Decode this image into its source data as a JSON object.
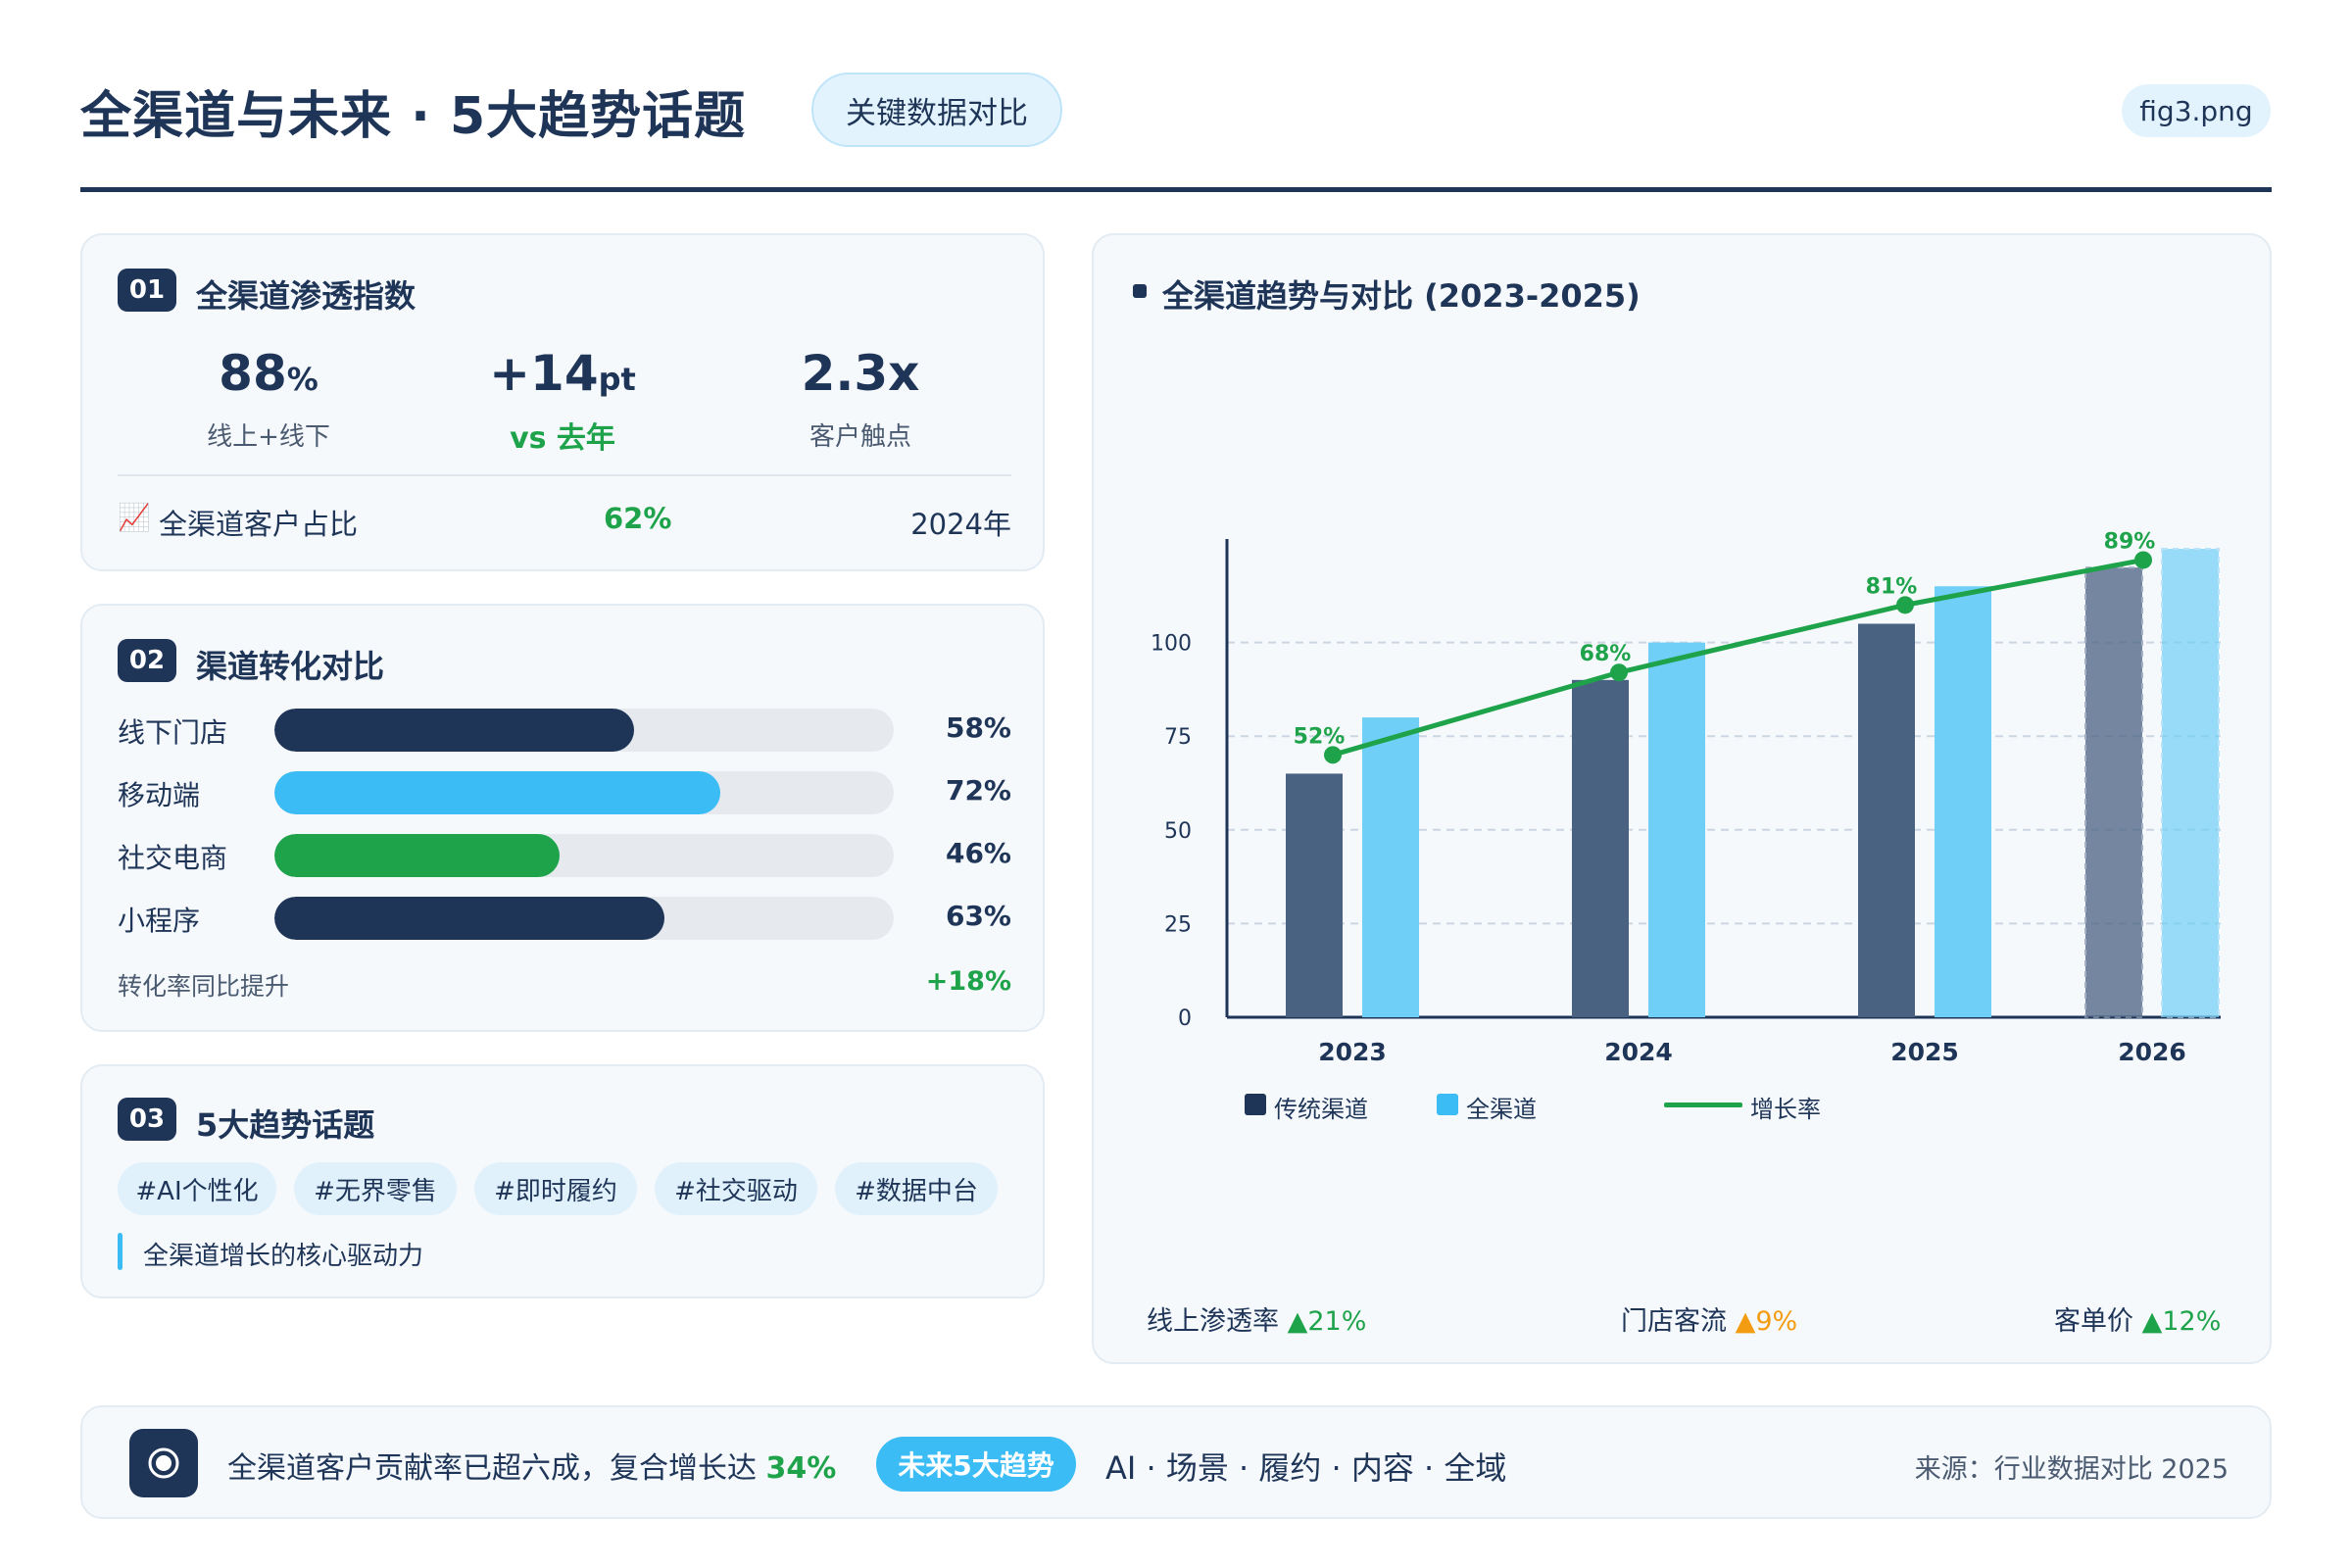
{
  "header": {
    "title": "全渠道与未来 · 5大趋势话题",
    "key_pill": "关键数据对比",
    "file_label": "fig3.png"
  },
  "card1": {
    "badge": "01",
    "title": "全渠道渗透指数",
    "stats": [
      {
        "value": "88",
        "unit": "%",
        "label": "线上+线下"
      },
      {
        "value": "+14",
        "unit": "pt",
        "label": "vs 去年"
      },
      {
        "value": "2.3x",
        "unit": "",
        "label": "客户触点"
      }
    ],
    "row": {
      "icon": "📈",
      "label": "全渠道客户占比",
      "value": "62%",
      "year": "2024年"
    }
  },
  "card2": {
    "badge": "02",
    "title": "渠道转化对比",
    "bars": [
      {
        "label": "线下门店",
        "value": 58,
        "pct": "58%",
        "color": "#1e3558"
      },
      {
        "label": "移动端",
        "value": 72,
        "pct": "72%",
        "color": "#3bbcf5"
      },
      {
        "label": "社交电商",
        "value": 46,
        "pct": "46%",
        "color": "#1ea34b"
      },
      {
        "label": "小程序",
        "value": 63,
        "pct": "63%",
        "color": "#1e3558"
      }
    ],
    "footer_label": "转化率同比提升",
    "footer_value": "+18%"
  },
  "card3": {
    "badge": "03",
    "title": "5大趋势话题",
    "tags": [
      "#AI个性化",
      "#无界零售",
      "#即时履约",
      "#社交驱动",
      "#数据中台"
    ],
    "note": "全渠道增长的核心驱动力"
  },
  "chart_card": {
    "title": "全渠道趋势与对比 (2023-2025)",
    "legend": [
      "传统渠道",
      "全渠道",
      "增长率"
    ],
    "stats": [
      {
        "label": "线上渗透率",
        "arrow": "▲",
        "value": "21%",
        "color": "#1ea34b"
      },
      {
        "label": "门店客流",
        "arrow": "▲",
        "value": "9%",
        "color": "#f39c12"
      },
      {
        "label": "客单价",
        "arrow": "▲",
        "value": "12%",
        "color": "#1ea34b"
      }
    ]
  },
  "chart_data": {
    "type": "bar",
    "categories": [
      "2023",
      "2024",
      "2025",
      "2026"
    ],
    "ylim": [
      0,
      125
    ],
    "yticks": [
      0,
      25,
      50,
      75,
      100
    ],
    "grid": true,
    "legend_position": "bottom-left",
    "series": [
      {
        "name": "传统渠道",
        "type": "bar",
        "values": [
          65,
          90,
          105,
          120
        ],
        "color": "#4a6282"
      },
      {
        "name": "全渠道",
        "type": "bar",
        "values": [
          80,
          100,
          115,
          125
        ],
        "color": "#6fcff7"
      },
      {
        "name": "增长率",
        "type": "line",
        "values": [
          70,
          92,
          110,
          122
        ],
        "labels": [
          "52%",
          "68%",
          "81%",
          "89%"
        ],
        "color": "#1ea34b"
      }
    ],
    "projected_category": "2026"
  },
  "footer": {
    "text_prefix": "全渠道客户贡献率已超六成，复合增长达",
    "text_value": "34%",
    "pill": "未来5大趋势",
    "trends": "AI · 场景 · 履约 · 内容 · 全域",
    "source": "来源：行业数据对比 2025"
  }
}
